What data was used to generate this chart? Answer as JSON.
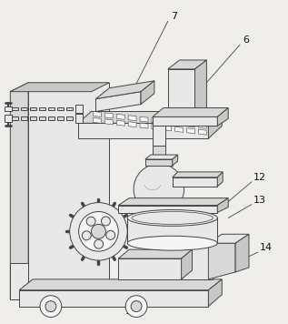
{
  "figsize": [
    3.17,
    3.56
  ],
  "dpi": 100,
  "bg_color": "#f0eeeb",
  "line_color": "#444444",
  "lw": 0.7,
  "fill_light": "#e8e8e8",
  "fill_mid": "#d8d8d8",
  "fill_dark": "#c8c8c8",
  "fill_white": "#f5f5f5"
}
